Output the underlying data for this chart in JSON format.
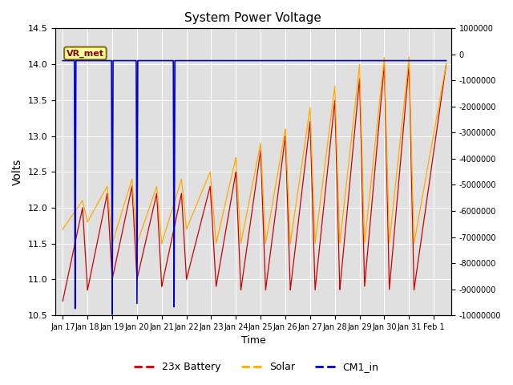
{
  "title": "System Power Voltage",
  "xlabel": "Time",
  "ylabel": "Volts",
  "ylim_left": [
    10.5,
    14.5
  ],
  "ylim_right": [
    -10000000,
    1000000
  ],
  "yticks_left": [
    10.5,
    11.0,
    11.5,
    12.0,
    12.5,
    13.0,
    13.5,
    14.0,
    14.5
  ],
  "yticks_right": [
    1000000,
    0,
    -1000000,
    -2000000,
    -3000000,
    -4000000,
    -5000000,
    -6000000,
    -7000000,
    -8000000,
    -9000000,
    -10000000
  ],
  "xtick_labels": [
    "Jan 17",
    "Jan 18",
    "Jan 19",
    "Jan 20",
    "Jan 21",
    "Jan 22",
    "Jan 23",
    "Jan 24",
    "Jan 25",
    "Jan 26",
    "Jan 27",
    "Jan 28",
    "Jan 29",
    "Jan 30",
    "Jan 31",
    "Feb 1"
  ],
  "annotation_text": "VR_met",
  "battery_color": "#cc0000",
  "solar_color": "#ffaa00",
  "cm1_color": "#0000cc",
  "legend_labels": [
    "23x Battery",
    "Solar",
    "CM1_in"
  ],
  "bg_color": "#e0e0e0",
  "grid_color": "#ffffff"
}
